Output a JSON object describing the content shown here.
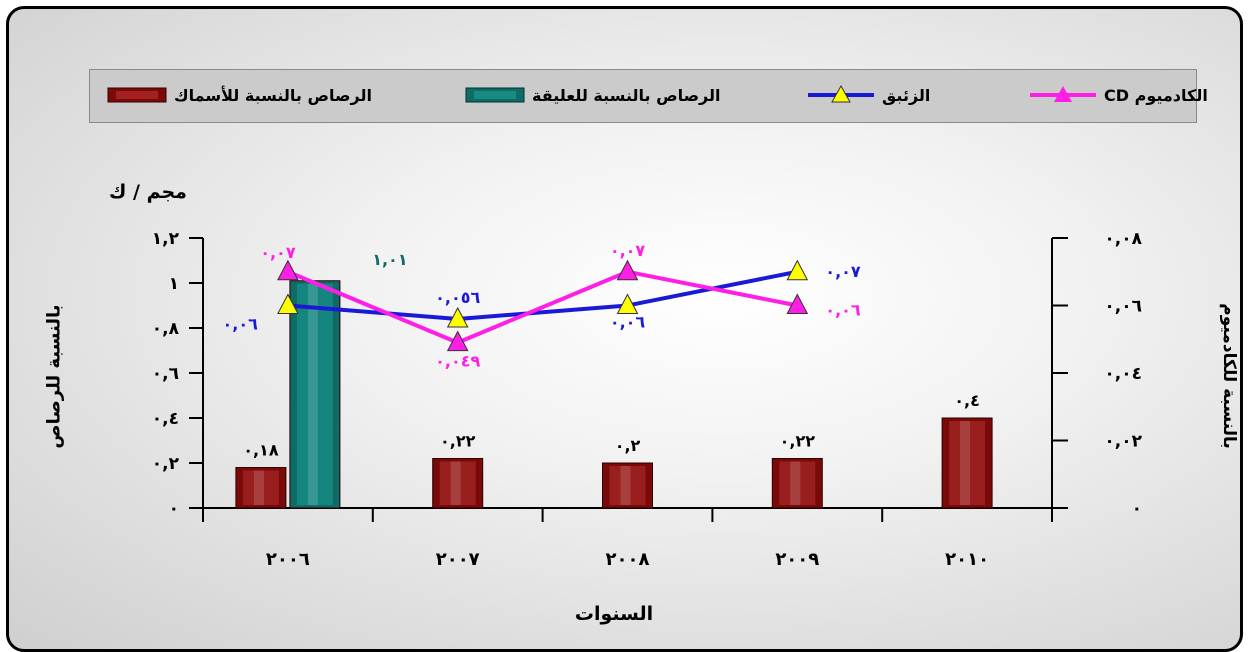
{
  "chart_data": {
    "type": "bar",
    "x_label": "السنوات",
    "unit_label": "مجم / ك",
    "y_left_label": "بالنسبة للرصاص",
    "y_right_label": "بالنسبة للكادميوم",
    "categories": [
      "٢٠٠٦",
      "٢٠٠٧",
      "٢٠٠٨",
      "٢٠٠٩",
      "٢٠١٠"
    ],
    "y_left_ticks": [
      "٠",
      "٠,٢",
      "٠,٤",
      "٠,٦",
      "٠,٨",
      "١",
      "١,٢"
    ],
    "y_left_range": [
      0,
      1.2
    ],
    "y_right_ticks": [
      "٠",
      "٠,٠٢",
      "٠,٠٤",
      "٠,٠٦",
      "٠,٠٨"
    ],
    "y_right_range": [
      0,
      0.08
    ],
    "series": [
      {
        "name": "الرصاص بالنسبة للأسماك",
        "kind": "bar",
        "axis": "left",
        "color": "#7a0a0a",
        "values": [
          0.18,
          0.22,
          0.2,
          0.22,
          0.4
        ],
        "labels": [
          "٠,١٨",
          "٠,٢٢",
          "٠,٢",
          "٠,٢٢",
          "٠,٤"
        ]
      },
      {
        "name": "الرصاص بالنسبة للعليقة",
        "kind": "bar",
        "axis": "left",
        "color": "#0f6b66",
        "values": [
          1.01,
          null,
          null,
          null,
          null
        ],
        "labels": [
          "١,٠١",
          "",
          "",
          "",
          ""
        ]
      },
      {
        "name": "الزئبق",
        "kind": "line",
        "axis": "right",
        "color": "#1a1ad6",
        "marker_fill": "#ffff00",
        "values": [
          0.06,
          0.056,
          0.06,
          0.07,
          null
        ],
        "labels": [
          "٠,٠٦",
          "٠,٠٥٦",
          "٠,٠٦",
          "٠,٠٧",
          ""
        ]
      },
      {
        "name": "الكادميوم CD",
        "kind": "line",
        "axis": "right",
        "color": "#ff1ee6",
        "marker_fill": "#ff1ee6",
        "values": [
          0.07,
          0.049,
          0.07,
          0.06,
          null
        ],
        "labels": [
          "٠,٠٧",
          "٠,٠٤٩",
          "٠,٠٧",
          "٠,٠٦",
          ""
        ]
      }
    ]
  }
}
